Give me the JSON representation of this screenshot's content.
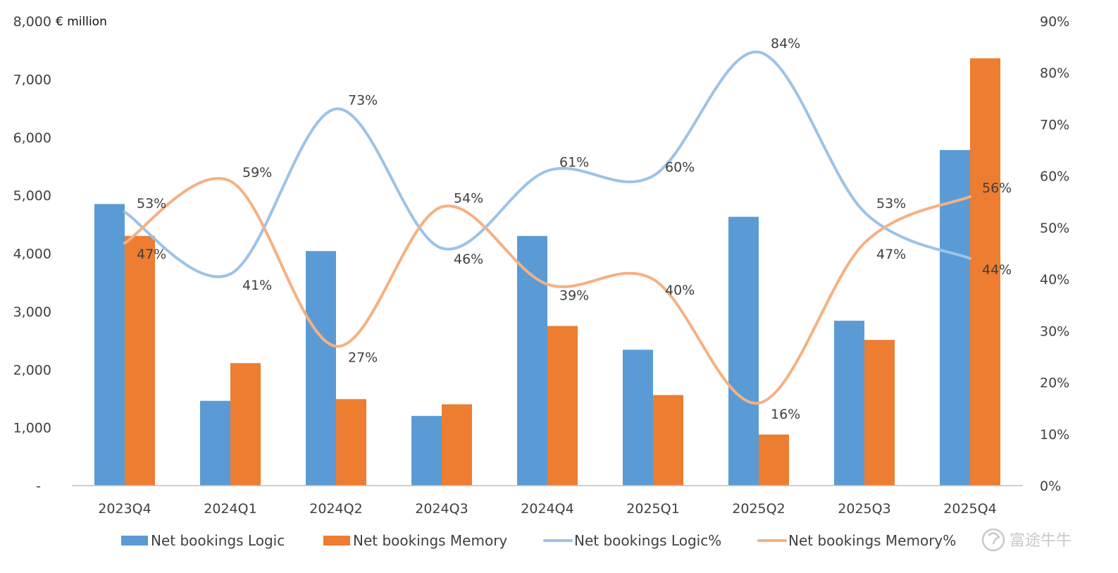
{
  "chart_data": {
    "type": "bar",
    "categories": [
      "2023Q4",
      "2024Q1",
      "2024Q2",
      "2024Q3",
      "2024Q4",
      "2025Q1",
      "2025Q2",
      "2025Q3",
      "2025Q4"
    ],
    "series": [
      {
        "name": "Net bookings Logic",
        "kind": "bar",
        "axis": "left",
        "color": "#5B9BD5",
        "values": [
          4850,
          1460,
          4040,
          1200,
          4300,
          2340,
          4630,
          2840,
          5780
        ]
      },
      {
        "name": "Net bookings Memory",
        "kind": "bar",
        "axis": "left",
        "color": "#ED7D31",
        "values": [
          4300,
          2110,
          1490,
          1400,
          2750,
          1560,
          880,
          2510,
          7360
        ]
      },
      {
        "name": "Net bookings Logic%",
        "kind": "line",
        "axis": "right",
        "color": "#9DC3E6",
        "values": [
          53,
          41,
          73,
          46,
          61,
          60,
          84,
          53,
          44
        ],
        "labels": [
          "53%",
          "41%",
          "73%",
          "46%",
          "61%",
          "60%",
          "84%",
          "53%",
          "44%"
        ]
      },
      {
        "name": "Net bookings Memory%",
        "kind": "line",
        "axis": "right",
        "color": "#F4B183",
        "values": [
          47,
          59,
          27,
          54,
          39,
          40,
          16,
          47,
          56
        ],
        "labels": [
          "47%",
          "59%",
          "27%",
          "54%",
          "39%",
          "40%",
          "16%",
          "47%",
          "56%"
        ]
      }
    ],
    "left_axis": {
      "unit_label": "€ million",
      "ylim": [
        0,
        8000
      ],
      "ticks": [
        "-",
        "1,000",
        "2,000",
        "3,000",
        "4,000",
        "5,000",
        "6,000",
        "7,000",
        "8,000"
      ]
    },
    "right_axis": {
      "ylim": [
        0,
        90
      ],
      "ticks": [
        "0%",
        "10%",
        "20%",
        "30%",
        "40%",
        "50%",
        "60%",
        "70%",
        "80%",
        "90%"
      ]
    },
    "grid": false,
    "legend": "bottom"
  },
  "watermark": {
    "icon": "futu-logo-icon",
    "text": "富途牛牛"
  }
}
